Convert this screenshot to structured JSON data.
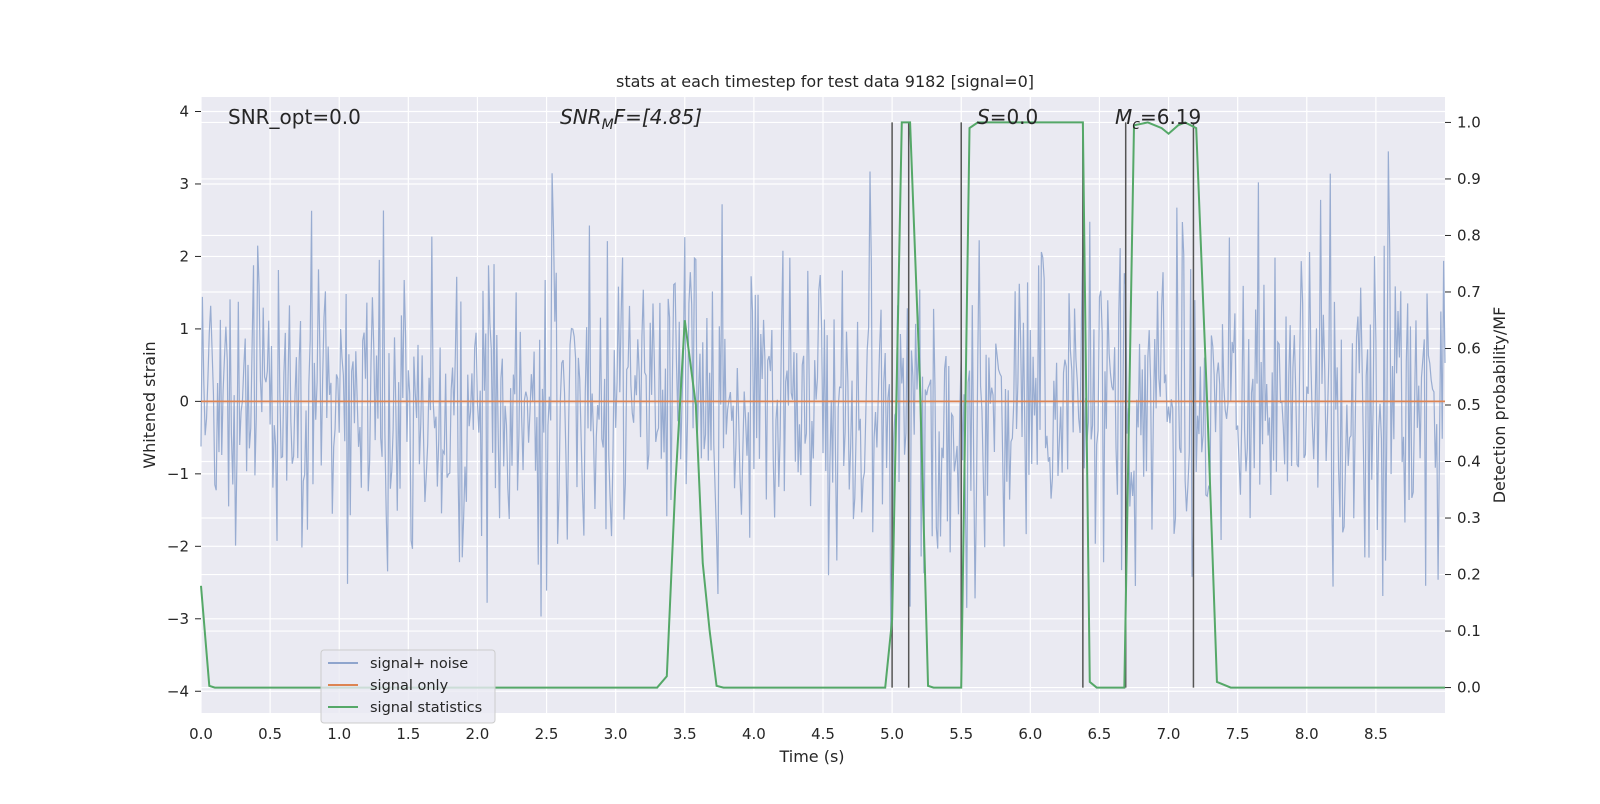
{
  "chart_data": {
    "type": "line",
    "title": "stats at each timestep for test data 9182 [signal=0]",
    "xlabel": "Time (s)",
    "ylabel": "Whitened strain",
    "ylabel_right": "Detection probability/MF",
    "xlim": [
      0.0,
      9.0
    ],
    "ylim": [
      -4.3,
      4.2
    ],
    "ylim_right": [
      -0.045,
      1.045
    ],
    "x_ticks": [
      "0.0",
      "0.5",
      "1.0",
      "1.5",
      "2.0",
      "2.5",
      "3.0",
      "3.5",
      "4.0",
      "4.5",
      "5.0",
      "5.5",
      "6.0",
      "6.5",
      "7.0",
      "7.5",
      "8.0",
      "8.5"
    ],
    "y_ticks": [
      "−4",
      "−3",
      "−2",
      "−1",
      "0",
      "1",
      "2",
      "3",
      "4"
    ],
    "y_ticks_right": [
      "0.0",
      "0.1",
      "0.2",
      "0.3",
      "0.4",
      "0.5",
      "0.6",
      "0.7",
      "0.8",
      "0.9",
      "1.0"
    ],
    "grid": true,
    "annotations": {
      "snr_opt": "SNR_opt=0.0",
      "snr_mf_main": "SNR",
      "snr_mf_sub": "M",
      "snr_mf_rest": "F=[4.85]",
      "s_main": "S",
      "s_rest": "=0.0",
      "mc_main": "M",
      "mc_sub": "c",
      "mc_rest": "=6.19"
    },
    "legend": {
      "position": "lower-left",
      "entries": [
        "signal+ noise",
        "signal only",
        "signal statistics"
      ]
    },
    "colors": {
      "noise": "#8fa5cd",
      "signal": "#dd8452",
      "stats": "#55a868",
      "vlines": "#555555",
      "plot_bg": "#eaeaf2"
    },
    "series": [
      {
        "name": "signal+ noise",
        "axis": "left",
        "description_values": "whitened strain noise, roughly within [-3.6, 3.4]",
        "x_range": [
          0.0,
          9.0
        ],
        "samples": 900
      },
      {
        "name": "signal only",
        "axis": "left",
        "x": [
          0.0,
          9.0
        ],
        "y": [
          0.0,
          0.0
        ]
      },
      {
        "name": "signal statistics",
        "axis": "right",
        "x": [
          0.0,
          0.06,
          0.1,
          3.3,
          3.37,
          3.43,
          3.5,
          3.58,
          3.63,
          3.68,
          3.73,
          3.78,
          4.95,
          5.0,
          5.07,
          5.13,
          5.2,
          5.26,
          5.3,
          5.5,
          5.56,
          5.62,
          5.7,
          6.38,
          6.43,
          6.48,
          6.68,
          6.75,
          6.85,
          6.95,
          7.0,
          7.07,
          7.12,
          7.2,
          7.28,
          7.35,
          7.45,
          9.0
        ],
        "y": [
          0.18,
          0.003,
          0.0,
          0.0,
          0.02,
          0.35,
          0.65,
          0.5,
          0.22,
          0.1,
          0.003,
          0.0,
          0.0,
          0.12,
          1.0,
          1.0,
          0.55,
          0.003,
          0.0,
          0.0,
          0.99,
          1.0,
          1.0,
          1.0,
          0.01,
          0.0,
          0.0,
          0.995,
          1.0,
          0.99,
          0.98,
          0.995,
          1.0,
          0.99,
          0.5,
          0.01,
          0.0,
          0.0
        ]
      }
    ],
    "vertical_lines_x": [
      5.0,
      5.12,
      5.5,
      6.38,
      6.69,
      7.18
    ]
  }
}
